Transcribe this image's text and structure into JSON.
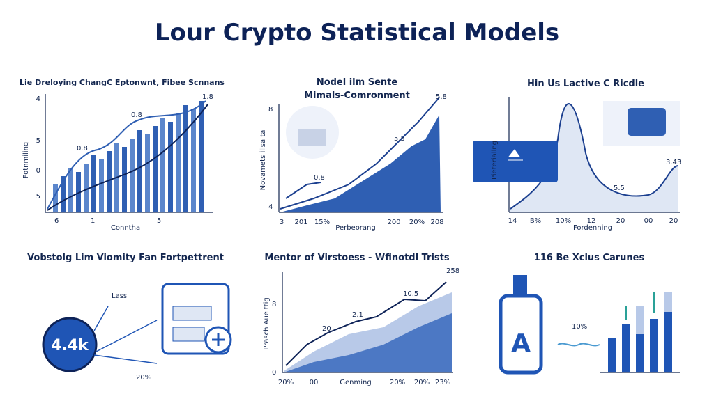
{
  "header": {
    "title": "Lour Crypto Statistical Models"
  },
  "panels": [
    {
      "title": "Lie Dreloying ChangC Eptonwnt, Fibee Scnnans",
      "y_axis_label": "Fotnmiling",
      "y_labels": [
        "4",
        "5",
        "0",
        "5"
      ],
      "x_labels": [
        "6",
        "1",
        "5"
      ],
      "x_axis_label": "Conntha",
      "annotations": [
        "0.8",
        "0.8",
        "1.8"
      ]
    },
    {
      "title": [
        "Nodel ilm Sente",
        "Mimals-Comronment"
      ],
      "y_axis_label": "Novamets illsa ta",
      "y_labels": [
        "8",
        "4"
      ],
      "x_labels": [
        "3",
        "201",
        "15%",
        "200",
        "20%",
        "208"
      ],
      "x_axis_label": "Perbeorang",
      "annotations": [
        "0.8",
        "5.5",
        "5.8"
      ]
    },
    {
      "title": "Hin Us Lactive C Ricdle",
      "y_axis_label": "Pieteriallng",
      "x_labels": [
        "14",
        "B%",
        "10%",
        "12",
        "20",
        "00",
        "20"
      ],
      "x_axis_label": "Fordenning",
      "annotations": [
        "5.5",
        "3.43"
      ]
    },
    {
      "title": "Vobstolg Lim Viomity Fan Fortpettrent",
      "badge": "4.4k",
      "annotations": [
        "Lass",
        "20%"
      ]
    },
    {
      "title": "Mentor of Virstoess - Wfinotdl Trists",
      "y_axis_label": "Prasch Aueittig",
      "y_labels": [
        "8",
        "0"
      ],
      "x_labels": [
        "20%",
        "00",
        "Genming",
        "20%",
        "20%",
        "23%"
      ],
      "annotations": [
        "258",
        "10.5",
        "20",
        "2.1"
      ]
    },
    {
      "title": "116 Be Xclus Carunes",
      "annotations": [
        "10%"
      ],
      "icon_letter": "A"
    }
  ]
}
